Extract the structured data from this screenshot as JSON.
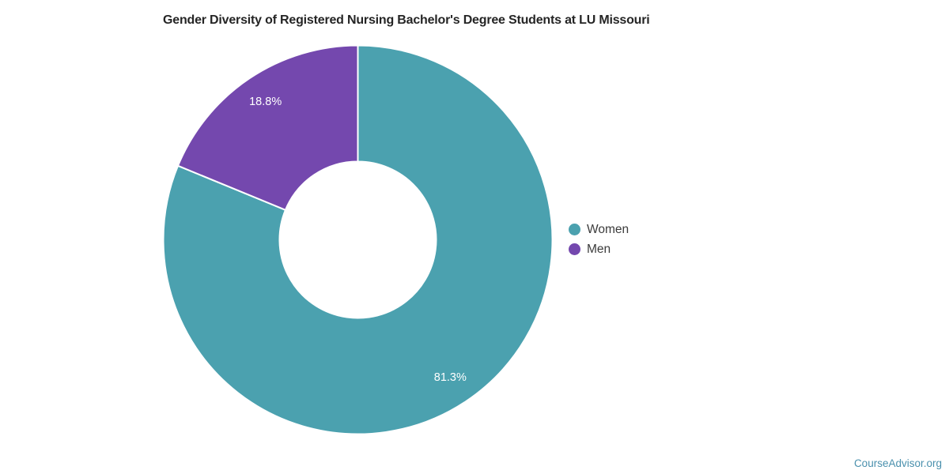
{
  "page": {
    "background": "#ffffff"
  },
  "header": {
    "title": "Gender Diversity of Registered Nursing Bachelor's Degree Students at LU Missouri"
  },
  "legend": {
    "position": "right",
    "items": [
      {
        "label": "Women",
        "color": "#4BA1AF"
      },
      {
        "label": "Men",
        "color": "#7448AE"
      }
    ]
  },
  "footer": {
    "link_label": "CourseAdvisor.org",
    "color": "#4A90AD"
  },
  "chart_data": {
    "type": "pie",
    "subtype": "donut",
    "title": "Gender Diversity of Registered Nursing Bachelor's Degree Students at LU Missouri",
    "categories": [
      "Women",
      "Men"
    ],
    "values": [
      81.3,
      18.8
    ],
    "value_labels": [
      "81.3%",
      "18.8%"
    ],
    "colors": [
      "#4BA1AF",
      "#7448AE"
    ],
    "units": "percent",
    "start_angle_deg": 0,
    "direction": "clockwise",
    "inner_radius_ratio": 0.4,
    "slice_border_color": "#ffffff",
    "label_color": "#ffffff",
    "legend_position": "right",
    "grid": false
  }
}
